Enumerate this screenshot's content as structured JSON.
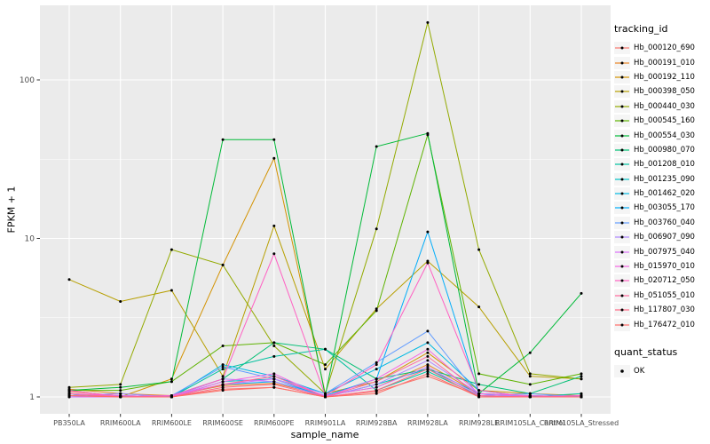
{
  "figure": {
    "bg": "#FFFFFF",
    "panel_bg": "#EBEBEB",
    "grid_color": "#FFFFFF",
    "tick_color": "#333333",
    "tick_label_color": "#4D4D4D",
    "axis_title_color": "#000000",
    "point_color": "#000000"
  },
  "axes": {
    "x_title": "sample_name",
    "y_title": "FPKM + 1",
    "y_tick_labels": [
      "1",
      "10",
      "100"
    ],
    "y_ticks": [
      1,
      10,
      100
    ],
    "y_minor": [
      3.162,
      31.62
    ]
  },
  "legend": {
    "tracking_title": "tracking_id",
    "quant_title": "quant_status",
    "quant_items": [
      {
        "label": "OK",
        "color": "#000000"
      }
    ]
  },
  "chart_data": {
    "type": "line",
    "title": "",
    "xlabel": "sample_name",
    "ylabel": "FPKM + 1",
    "log_y": true,
    "ylim": [
      0.78,
      295
    ],
    "grid": true,
    "legend_position": "right",
    "x_categories": [
      "PB350LA",
      "RRIM600LA",
      "RRIM600LE",
      "RRIM600SE",
      "RRIM600PE",
      "RRIM901LA",
      "RRIM928BA",
      "RRIM928LA",
      "RRIM928LE",
      "RRIM105LA_Control",
      "RRIM105LA_Stressed"
    ],
    "series": [
      {
        "name": "Hb_000120_690",
        "color": "#F8766D",
        "values": [
          1.08,
          1.02,
          1.0,
          1.12,
          1.15,
          1.0,
          1.08,
          1.35,
          1.02,
          1.0,
          1.02
        ]
      },
      {
        "name": "Hb_000191_010",
        "color": "#E88526",
        "values": [
          1.12,
          1.05,
          1.02,
          1.18,
          1.22,
          1.02,
          1.15,
          1.6,
          1.05,
          1.02,
          1.0
        ]
      },
      {
        "name": "Hb_000192_110",
        "color": "#D39200",
        "values": [
          1.1,
          1.0,
          1.3,
          6.8,
          32,
          1.05,
          1.25,
          1.9,
          1.1,
          1.05,
          1.02
        ]
      },
      {
        "name": "Hb_000398_050",
        "color": "#B79F00",
        "values": [
          5.5,
          4.0,
          4.7,
          1.35,
          12,
          1.5,
          3.6,
          7.2,
          3.7,
          1.35,
          1.3
        ]
      },
      {
        "name": "Hb_000440_030",
        "color": "#93AA00",
        "values": [
          1.15,
          1.2,
          8.5,
          6.8,
          2.1,
          1.05,
          11.5,
          230,
          8.5,
          1.4,
          1.3
        ]
      },
      {
        "name": "Hb_000545_160",
        "color": "#5EB300",
        "values": [
          1.1,
          1.1,
          1.25,
          2.1,
          2.2,
          1.6,
          3.5,
          45,
          1.4,
          1.2,
          1.4
        ]
      },
      {
        "name": "Hb_000554_030",
        "color": "#00BA38",
        "values": [
          1.1,
          1.15,
          1.25,
          42,
          42,
          1.02,
          38,
          46,
          1.05,
          1.9,
          4.5
        ]
      },
      {
        "name": "Hb_000980_070",
        "color": "#00BF74",
        "values": [
          1.05,
          1.0,
          1.02,
          1.3,
          2.2,
          2.0,
          1.3,
          1.5,
          1.2,
          1.05,
          1.35
        ]
      },
      {
        "name": "Hb_001208_010",
        "color": "#00C19F",
        "values": [
          1.02,
          1.05,
          1.0,
          1.5,
          1.8,
          2.0,
          1.1,
          1.45,
          1.02,
          1.0,
          1.05
        ]
      },
      {
        "name": "Hb_001235_090",
        "color": "#00BFC4",
        "values": [
          1.05,
          1.0,
          1.0,
          1.25,
          1.3,
          1.0,
          1.2,
          1.5,
          1.05,
          1.02,
          1.0
        ]
      },
      {
        "name": "Hb_001462_020",
        "color": "#00B9E3",
        "values": [
          1.0,
          1.02,
          1.0,
          1.6,
          1.35,
          1.05,
          1.5,
          2.2,
          1.1,
          1.0,
          1.02
        ]
      },
      {
        "name": "Hb_003055_170",
        "color": "#00ADFA",
        "values": [
          1.02,
          1.0,
          1.0,
          1.2,
          1.25,
          1.02,
          1.3,
          11,
          1.05,
          1.0,
          1.0
        ]
      },
      {
        "name": "Hb_003760_040",
        "color": "#619CFF",
        "values": [
          1.05,
          1.0,
          1.02,
          1.55,
          1.3,
          1.05,
          1.65,
          2.6,
          1.02,
          1.05,
          1.0
        ]
      },
      {
        "name": "Hb_006907_090",
        "color": "#AE87FF",
        "values": [
          1.02,
          1.05,
          1.0,
          1.3,
          1.25,
          1.0,
          1.2,
          1.7,
          1.05,
          1.0,
          1.02
        ]
      },
      {
        "name": "Hb_007975_040",
        "color": "#DB72FB",
        "values": [
          1.0,
          1.0,
          1.02,
          1.2,
          1.3,
          1.02,
          1.15,
          1.55,
          1.02,
          1.0,
          1.0
        ]
      },
      {
        "name": "Hb_015970_010",
        "color": "#F564E3",
        "values": [
          1.05,
          1.02,
          1.0,
          1.25,
          1.4,
          1.0,
          1.3,
          2.0,
          1.05,
          1.02,
          1.0
        ]
      },
      {
        "name": "Hb_020712_050",
        "color": "#FF61C3",
        "values": [
          1.1,
          1.0,
          1.02,
          1.3,
          8.0,
          1.02,
          1.6,
          7.0,
          1.1,
          1.0,
          1.02
        ]
      },
      {
        "name": "Hb_051055_010",
        "color": "#FF699C",
        "values": [
          1.05,
          1.0,
          1.0,
          1.2,
          1.35,
          1.0,
          1.25,
          1.8,
          1.02,
          1.0,
          1.0
        ]
      },
      {
        "name": "Hb_117807_030",
        "color": "#FF6985",
        "values": [
          1.02,
          1.0,
          1.0,
          1.15,
          1.2,
          1.0,
          1.1,
          1.5,
          1.0,
          1.0,
          1.0
        ]
      },
      {
        "name": "Hb_176472_010",
        "color": "#FF6C67",
        "values": [
          1.02,
          1.0,
          1.0,
          1.1,
          1.15,
          1.0,
          1.05,
          1.4,
          1.0,
          1.0,
          1.0
        ]
      }
    ]
  }
}
